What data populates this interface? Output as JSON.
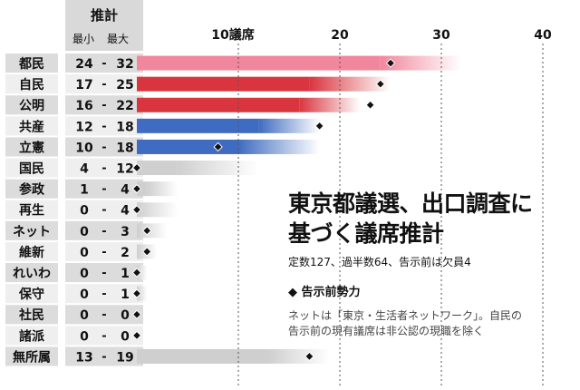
{
  "header": {
    "title": "推計",
    "min_label": "最小",
    "max_label": "最大"
  },
  "info": {
    "title_line1": "東京都議選、出口調査に",
    "title_line2": "基づく議席推計",
    "subtitle": "定数127、過半数64、告示前は欠員4",
    "legend_marker": "◆",
    "legend_label": "告示前勢力",
    "note_line1": "ネットは「東京・生活者ネットワーク」。自民の",
    "note_line2": "告示前の現有議席は非公認の現職を除く"
  },
  "colors": {
    "pink": "#f1879d",
    "red": "#d9353f",
    "blue": "#3f6cc0",
    "gray": "#cfcfcf",
    "rowDark": "#dcdcdc",
    "rowLight": "#efefef"
  },
  "chart_data": {
    "type": "bar",
    "x_ticks": [
      {
        "value": 10,
        "label": "10議席"
      },
      {
        "value": 20,
        "label": "20"
      },
      {
        "value": 30,
        "label": "30"
      },
      {
        "value": 40,
        "label": "40"
      }
    ],
    "xlim": [
      0,
      40
    ],
    "rows": [
      {
        "party": "都民",
        "min": 24,
        "max": 32,
        "min_label": "24",
        "max_label": "32",
        "pre": 25,
        "color": "pink"
      },
      {
        "party": "自民",
        "min": 17,
        "max": 25,
        "min_label": "17",
        "max_label": "25",
        "pre": 24,
        "color": "red"
      },
      {
        "party": "公明",
        "min": 16,
        "max": 22,
        "min_label": "16",
        "max_label": "22",
        "pre": 23,
        "color": "red"
      },
      {
        "party": "共産",
        "min": 12,
        "max": 18,
        "min_label": "12",
        "max_label": "18",
        "pre": 18,
        "color": "blue"
      },
      {
        "party": "立憲",
        "min": 10,
        "max": 18,
        "min_label": "10",
        "max_label": "18",
        "pre": 8,
        "color": "blue"
      },
      {
        "party": "国民",
        "min": 4,
        "max": 12,
        "min_label": "4",
        "max_label": "12",
        "pre": 0,
        "color": "gray"
      },
      {
        "party": "参政",
        "min": 1,
        "max": 4,
        "min_label": "1",
        "max_label": "4",
        "pre": 0,
        "color": "gray"
      },
      {
        "party": "再生",
        "min": 0,
        "max": 4,
        "min_label": "0",
        "max_label": "4",
        "pre": 0,
        "color": "gray"
      },
      {
        "party": "ネット",
        "min": 0,
        "max": 3,
        "min_label": "0",
        "max_label": "3",
        "pre": 1,
        "color": "gray"
      },
      {
        "party": "維新",
        "min": 0,
        "max": 2,
        "min_label": "0",
        "max_label": "2",
        "pre": 1,
        "color": "gray"
      },
      {
        "party": "れいわ",
        "min": 0,
        "max": 1,
        "min_label": "0",
        "max_label": "1",
        "pre": 0,
        "color": "gray"
      },
      {
        "party": "保守",
        "min": 0,
        "max": 1,
        "min_label": "0",
        "max_label": "1",
        "pre": 0,
        "color": "gray"
      },
      {
        "party": "社民",
        "min": 0,
        "max": 0,
        "min_label": "0",
        "max_label": "0",
        "pre": 0,
        "color": "gray"
      },
      {
        "party": "諸派",
        "min": 0,
        "max": 0,
        "min_label": "0",
        "max_label": "0",
        "pre": 0,
        "color": "gray"
      },
      {
        "party": "無所属",
        "min": 13,
        "max": 19,
        "min_label": "13",
        "max_label": "19",
        "pre": 17,
        "color": "gray"
      }
    ]
  }
}
